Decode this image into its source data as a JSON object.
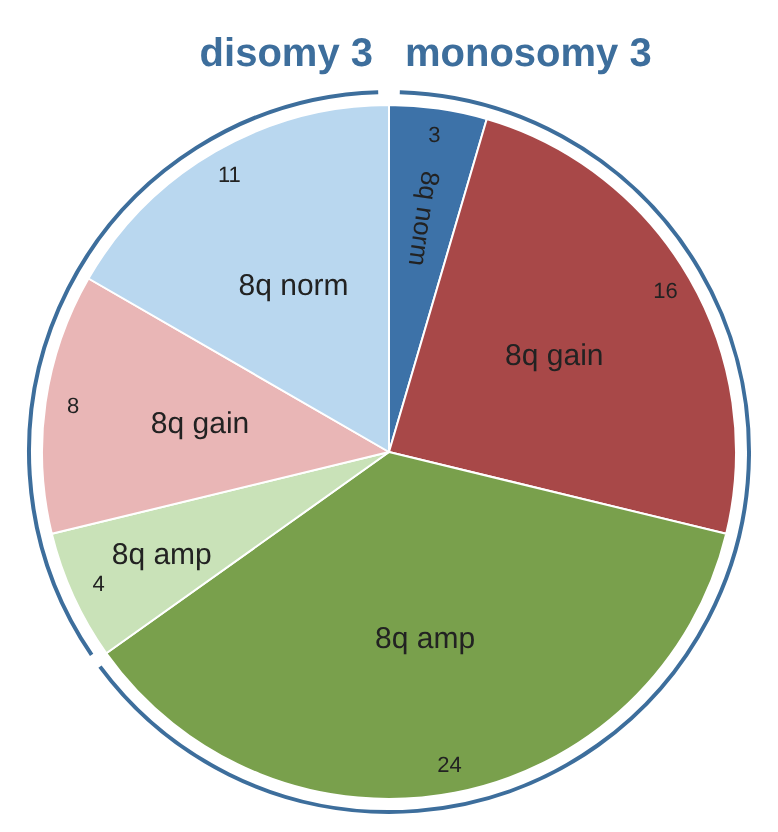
{
  "chart_data": {
    "type": "pie",
    "categories": [
      "8q norm",
      "8q gain",
      "8q amp",
      "8q amp",
      "8q gain",
      "8q norm"
    ],
    "values": [
      3,
      16,
      24,
      4,
      8,
      11
    ],
    "colors": [
      "#3d72a8",
      "#a84848",
      "#79a04c",
      "#c9e2b8",
      "#e9b6b6",
      "#b9d7ef"
    ],
    "data_labels": true,
    "legend": false,
    "annotations": [
      "monosomy 3",
      "disomy 3"
    ]
  }
}
